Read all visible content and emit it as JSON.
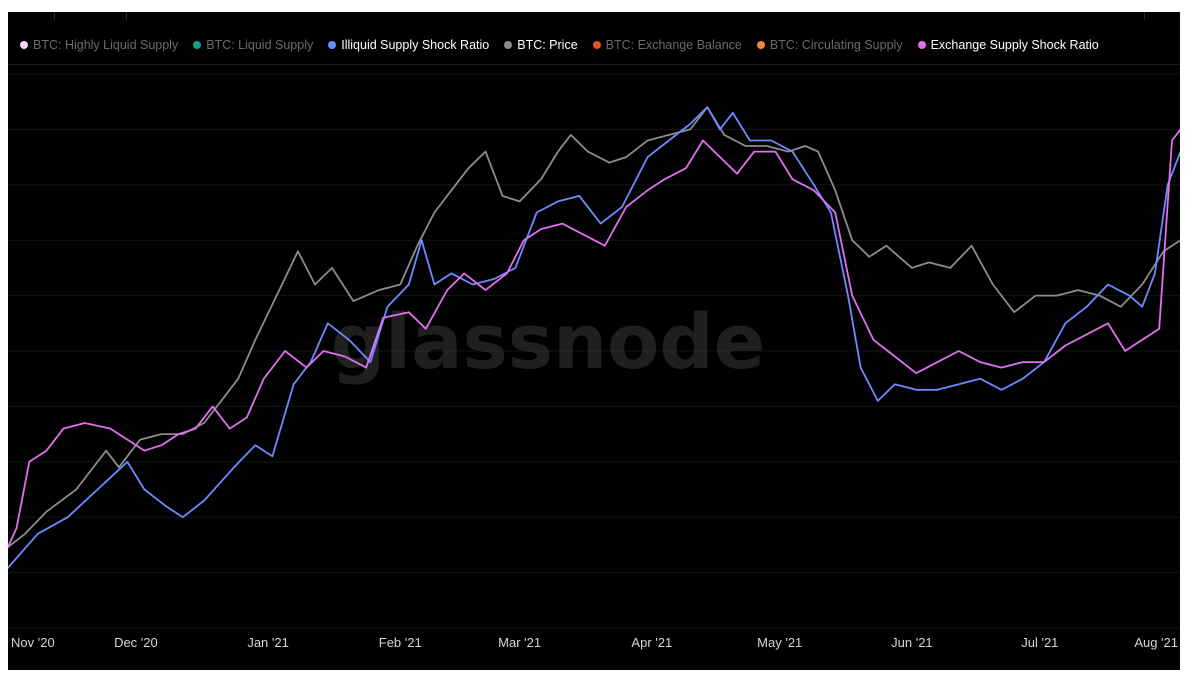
{
  "watermark_logo": "glassnode",
  "legend": [
    {
      "label": "BTC: Highly Liquid Supply",
      "color": "#f5d5f5",
      "visible": false
    },
    {
      "label": "BTC: Liquid Supply",
      "color": "#1a9c8c",
      "visible": false
    },
    {
      "label": "Illiquid Supply Shock Ratio",
      "color": "#6b8cff",
      "visible": true
    },
    {
      "label": "BTC: Price",
      "color": "#8c8c8c",
      "visible": true
    },
    {
      "label": "BTC: Exchange Balance",
      "color": "#e8531f",
      "visible": false
    },
    {
      "label": "BTC: Circulating Supply",
      "color": "#f58840",
      "visible": false
    },
    {
      "label": "Exchange Supply Shock Ratio",
      "color": "#e36ff0",
      "visible": true
    }
  ],
  "chart_data": {
    "type": "line",
    "title": "",
    "xlabel": "",
    "ylabel": "",
    "x_ticks": [
      "Nov '20",
      "Dec '20",
      "Jan '21",
      "Feb '21",
      "Mar '21",
      "Apr '21",
      "May '21",
      "Jun '21",
      "Jul '21",
      "Aug '21"
    ],
    "x_range": [
      "2020-11-01",
      "2021-08-01"
    ],
    "y_range": [
      0,
      100
    ],
    "y_axis_visible": false,
    "grid": "horizontal",
    "legend_position": "top",
    "series": [
      {
        "name": "Illiquid Supply Shock Ratio",
        "color": "#6b8cff",
        "points": [
          [
            "2020-10-31",
            10
          ],
          [
            "2020-11-08",
            17
          ],
          [
            "2020-11-15",
            20
          ],
          [
            "2020-11-22",
            25
          ],
          [
            "2020-11-29",
            30
          ],
          [
            "2020-12-03",
            25
          ],
          [
            "2020-12-08",
            22
          ],
          [
            "2020-12-12",
            20
          ],
          [
            "2020-12-17",
            23
          ],
          [
            "2020-12-24",
            29
          ],
          [
            "2020-12-29",
            33
          ],
          [
            "2021-01-02",
            31
          ],
          [
            "2021-01-07",
            44
          ],
          [
            "2021-01-11",
            48
          ],
          [
            "2021-01-15",
            55
          ],
          [
            "2021-01-20",
            52
          ],
          [
            "2021-01-25",
            48
          ],
          [
            "2021-01-29",
            58
          ],
          [
            "2021-02-03",
            62
          ],
          [
            "2021-02-06",
            70
          ],
          [
            "2021-02-09",
            62
          ],
          [
            "2021-02-13",
            64
          ],
          [
            "2021-02-18",
            62
          ],
          [
            "2021-02-23",
            63
          ],
          [
            "2021-02-28",
            65
          ],
          [
            "2021-03-05",
            75
          ],
          [
            "2021-03-10",
            77
          ],
          [
            "2021-03-15",
            78
          ],
          [
            "2021-03-20",
            73
          ],
          [
            "2021-03-25",
            76
          ],
          [
            "2021-03-31",
            85
          ],
          [
            "2021-04-05",
            88
          ],
          [
            "2021-04-10",
            91
          ],
          [
            "2021-04-14",
            94
          ],
          [
            "2021-04-17",
            90
          ],
          [
            "2021-04-20",
            93
          ],
          [
            "2021-04-24",
            88
          ],
          [
            "2021-04-29",
            88
          ],
          [
            "2021-05-04",
            86
          ],
          [
            "2021-05-09",
            80
          ],
          [
            "2021-05-13",
            75
          ],
          [
            "2021-05-17",
            60
          ],
          [
            "2021-05-20",
            47
          ],
          [
            "2021-05-24",
            41
          ],
          [
            "2021-05-28",
            44
          ],
          [
            "2021-06-02",
            43
          ],
          [
            "2021-06-07",
            43
          ],
          [
            "2021-06-12",
            44
          ],
          [
            "2021-06-17",
            45
          ],
          [
            "2021-06-22",
            43
          ],
          [
            "2021-06-27",
            45
          ],
          [
            "2021-07-02",
            48
          ],
          [
            "2021-07-07",
            55
          ],
          [
            "2021-07-12",
            58
          ],
          [
            "2021-07-17",
            62
          ],
          [
            "2021-07-22",
            60
          ],
          [
            "2021-07-25",
            58
          ],
          [
            "2021-07-28",
            64
          ],
          [
            "2021-07-31",
            80
          ],
          [
            "2021-08-03",
            86
          ]
        ]
      },
      {
        "name": "BTC: Price",
        "color": "#8c8c8c",
        "points": [
          [
            "2020-10-31",
            14
          ],
          [
            "2020-11-05",
            17
          ],
          [
            "2020-11-10",
            21
          ],
          [
            "2020-11-17",
            25
          ],
          [
            "2020-11-24",
            32
          ],
          [
            "2020-11-27",
            29
          ],
          [
            "2020-12-02",
            34
          ],
          [
            "2020-12-07",
            35
          ],
          [
            "2020-12-12",
            35
          ],
          [
            "2020-12-17",
            37
          ],
          [
            "2020-12-22",
            42
          ],
          [
            "2020-12-25",
            45
          ],
          [
            "2020-12-29",
            52
          ],
          [
            "2021-01-03",
            60
          ],
          [
            "2021-01-08",
            68
          ],
          [
            "2021-01-12",
            62
          ],
          [
            "2021-01-16",
            65
          ],
          [
            "2021-01-21",
            59
          ],
          [
            "2021-01-27",
            61
          ],
          [
            "2021-02-01",
            62
          ],
          [
            "2021-02-05",
            69
          ],
          [
            "2021-02-09",
            75
          ],
          [
            "2021-02-13",
            79
          ],
          [
            "2021-02-17",
            83
          ],
          [
            "2021-02-21",
            86
          ],
          [
            "2021-02-25",
            78
          ],
          [
            "2021-03-01",
            77
          ],
          [
            "2021-03-06",
            81
          ],
          [
            "2021-03-10",
            86
          ],
          [
            "2021-03-13",
            89
          ],
          [
            "2021-03-17",
            86
          ],
          [
            "2021-03-22",
            84
          ],
          [
            "2021-03-26",
            85
          ],
          [
            "2021-03-31",
            88
          ],
          [
            "2021-04-05",
            89
          ],
          [
            "2021-04-10",
            90
          ],
          [
            "2021-04-14",
            94
          ],
          [
            "2021-04-18",
            89
          ],
          [
            "2021-04-23",
            87
          ],
          [
            "2021-04-28",
            87
          ],
          [
            "2021-05-03",
            86
          ],
          [
            "2021-05-07",
            87
          ],
          [
            "2021-05-10",
            86
          ],
          [
            "2021-05-14",
            79
          ],
          [
            "2021-05-18",
            70
          ],
          [
            "2021-05-22",
            67
          ],
          [
            "2021-05-26",
            69
          ],
          [
            "2021-06-01",
            65
          ],
          [
            "2021-06-05",
            66
          ],
          [
            "2021-06-10",
            65
          ],
          [
            "2021-06-15",
            69
          ],
          [
            "2021-06-20",
            62
          ],
          [
            "2021-06-25",
            57
          ],
          [
            "2021-06-30",
            60
          ],
          [
            "2021-07-05",
            60
          ],
          [
            "2021-07-10",
            61
          ],
          [
            "2021-07-15",
            60
          ],
          [
            "2021-07-20",
            58
          ],
          [
            "2021-07-25",
            62
          ],
          [
            "2021-07-30",
            68
          ],
          [
            "2021-08-03",
            70
          ]
        ]
      },
      {
        "name": "Exchange Supply Shock Ratio",
        "color": "#e36ff0",
        "points": [
          [
            "2020-10-31",
            13
          ],
          [
            "2020-11-03",
            18
          ],
          [
            "2020-11-06",
            30
          ],
          [
            "2020-11-10",
            32
          ],
          [
            "2020-11-14",
            36
          ],
          [
            "2020-11-19",
            37
          ],
          [
            "2020-11-25",
            36
          ],
          [
            "2020-11-29",
            34
          ],
          [
            "2020-12-03",
            32
          ],
          [
            "2020-12-07",
            33
          ],
          [
            "2020-12-11",
            35
          ],
          [
            "2020-12-15",
            36
          ],
          [
            "2020-12-19",
            40
          ],
          [
            "2020-12-23",
            36
          ],
          [
            "2020-12-27",
            38
          ],
          [
            "2020-12-31",
            45
          ],
          [
            "2021-01-05",
            50
          ],
          [
            "2021-01-10",
            47
          ],
          [
            "2021-01-14",
            50
          ],
          [
            "2021-01-19",
            49
          ],
          [
            "2021-01-24",
            47
          ],
          [
            "2021-01-28",
            56
          ],
          [
            "2021-02-03",
            57
          ],
          [
            "2021-02-07",
            54
          ],
          [
            "2021-02-12",
            61
          ],
          [
            "2021-02-16",
            64
          ],
          [
            "2021-02-21",
            61
          ],
          [
            "2021-02-26",
            64
          ],
          [
            "2021-03-02",
            70
          ],
          [
            "2021-03-06",
            72
          ],
          [
            "2021-03-11",
            73
          ],
          [
            "2021-03-16",
            71
          ],
          [
            "2021-03-21",
            69
          ],
          [
            "2021-03-26",
            76
          ],
          [
            "2021-03-31",
            79
          ],
          [
            "2021-04-04",
            81
          ],
          [
            "2021-04-09",
            83
          ],
          [
            "2021-04-13",
            88
          ],
          [
            "2021-04-17",
            85
          ],
          [
            "2021-04-21",
            82
          ],
          [
            "2021-04-25",
            86
          ],
          [
            "2021-04-30",
            86
          ],
          [
            "2021-05-04",
            81
          ],
          [
            "2021-05-09",
            79
          ],
          [
            "2021-05-14",
            75
          ],
          [
            "2021-05-18",
            60
          ],
          [
            "2021-05-23",
            52
          ],
          [
            "2021-05-28",
            49
          ],
          [
            "2021-06-02",
            46
          ],
          [
            "2021-06-07",
            48
          ],
          [
            "2021-06-12",
            50
          ],
          [
            "2021-06-17",
            48
          ],
          [
            "2021-06-22",
            47
          ],
          [
            "2021-06-27",
            48
          ],
          [
            "2021-07-02",
            48
          ],
          [
            "2021-07-07",
            51
          ],
          [
            "2021-07-12",
            53
          ],
          [
            "2021-07-17",
            55
          ],
          [
            "2021-07-21",
            50
          ],
          [
            "2021-07-25",
            52
          ],
          [
            "2021-07-29",
            54
          ],
          [
            "2021-08-01",
            88
          ],
          [
            "2021-08-03",
            90
          ]
        ]
      }
    ]
  }
}
